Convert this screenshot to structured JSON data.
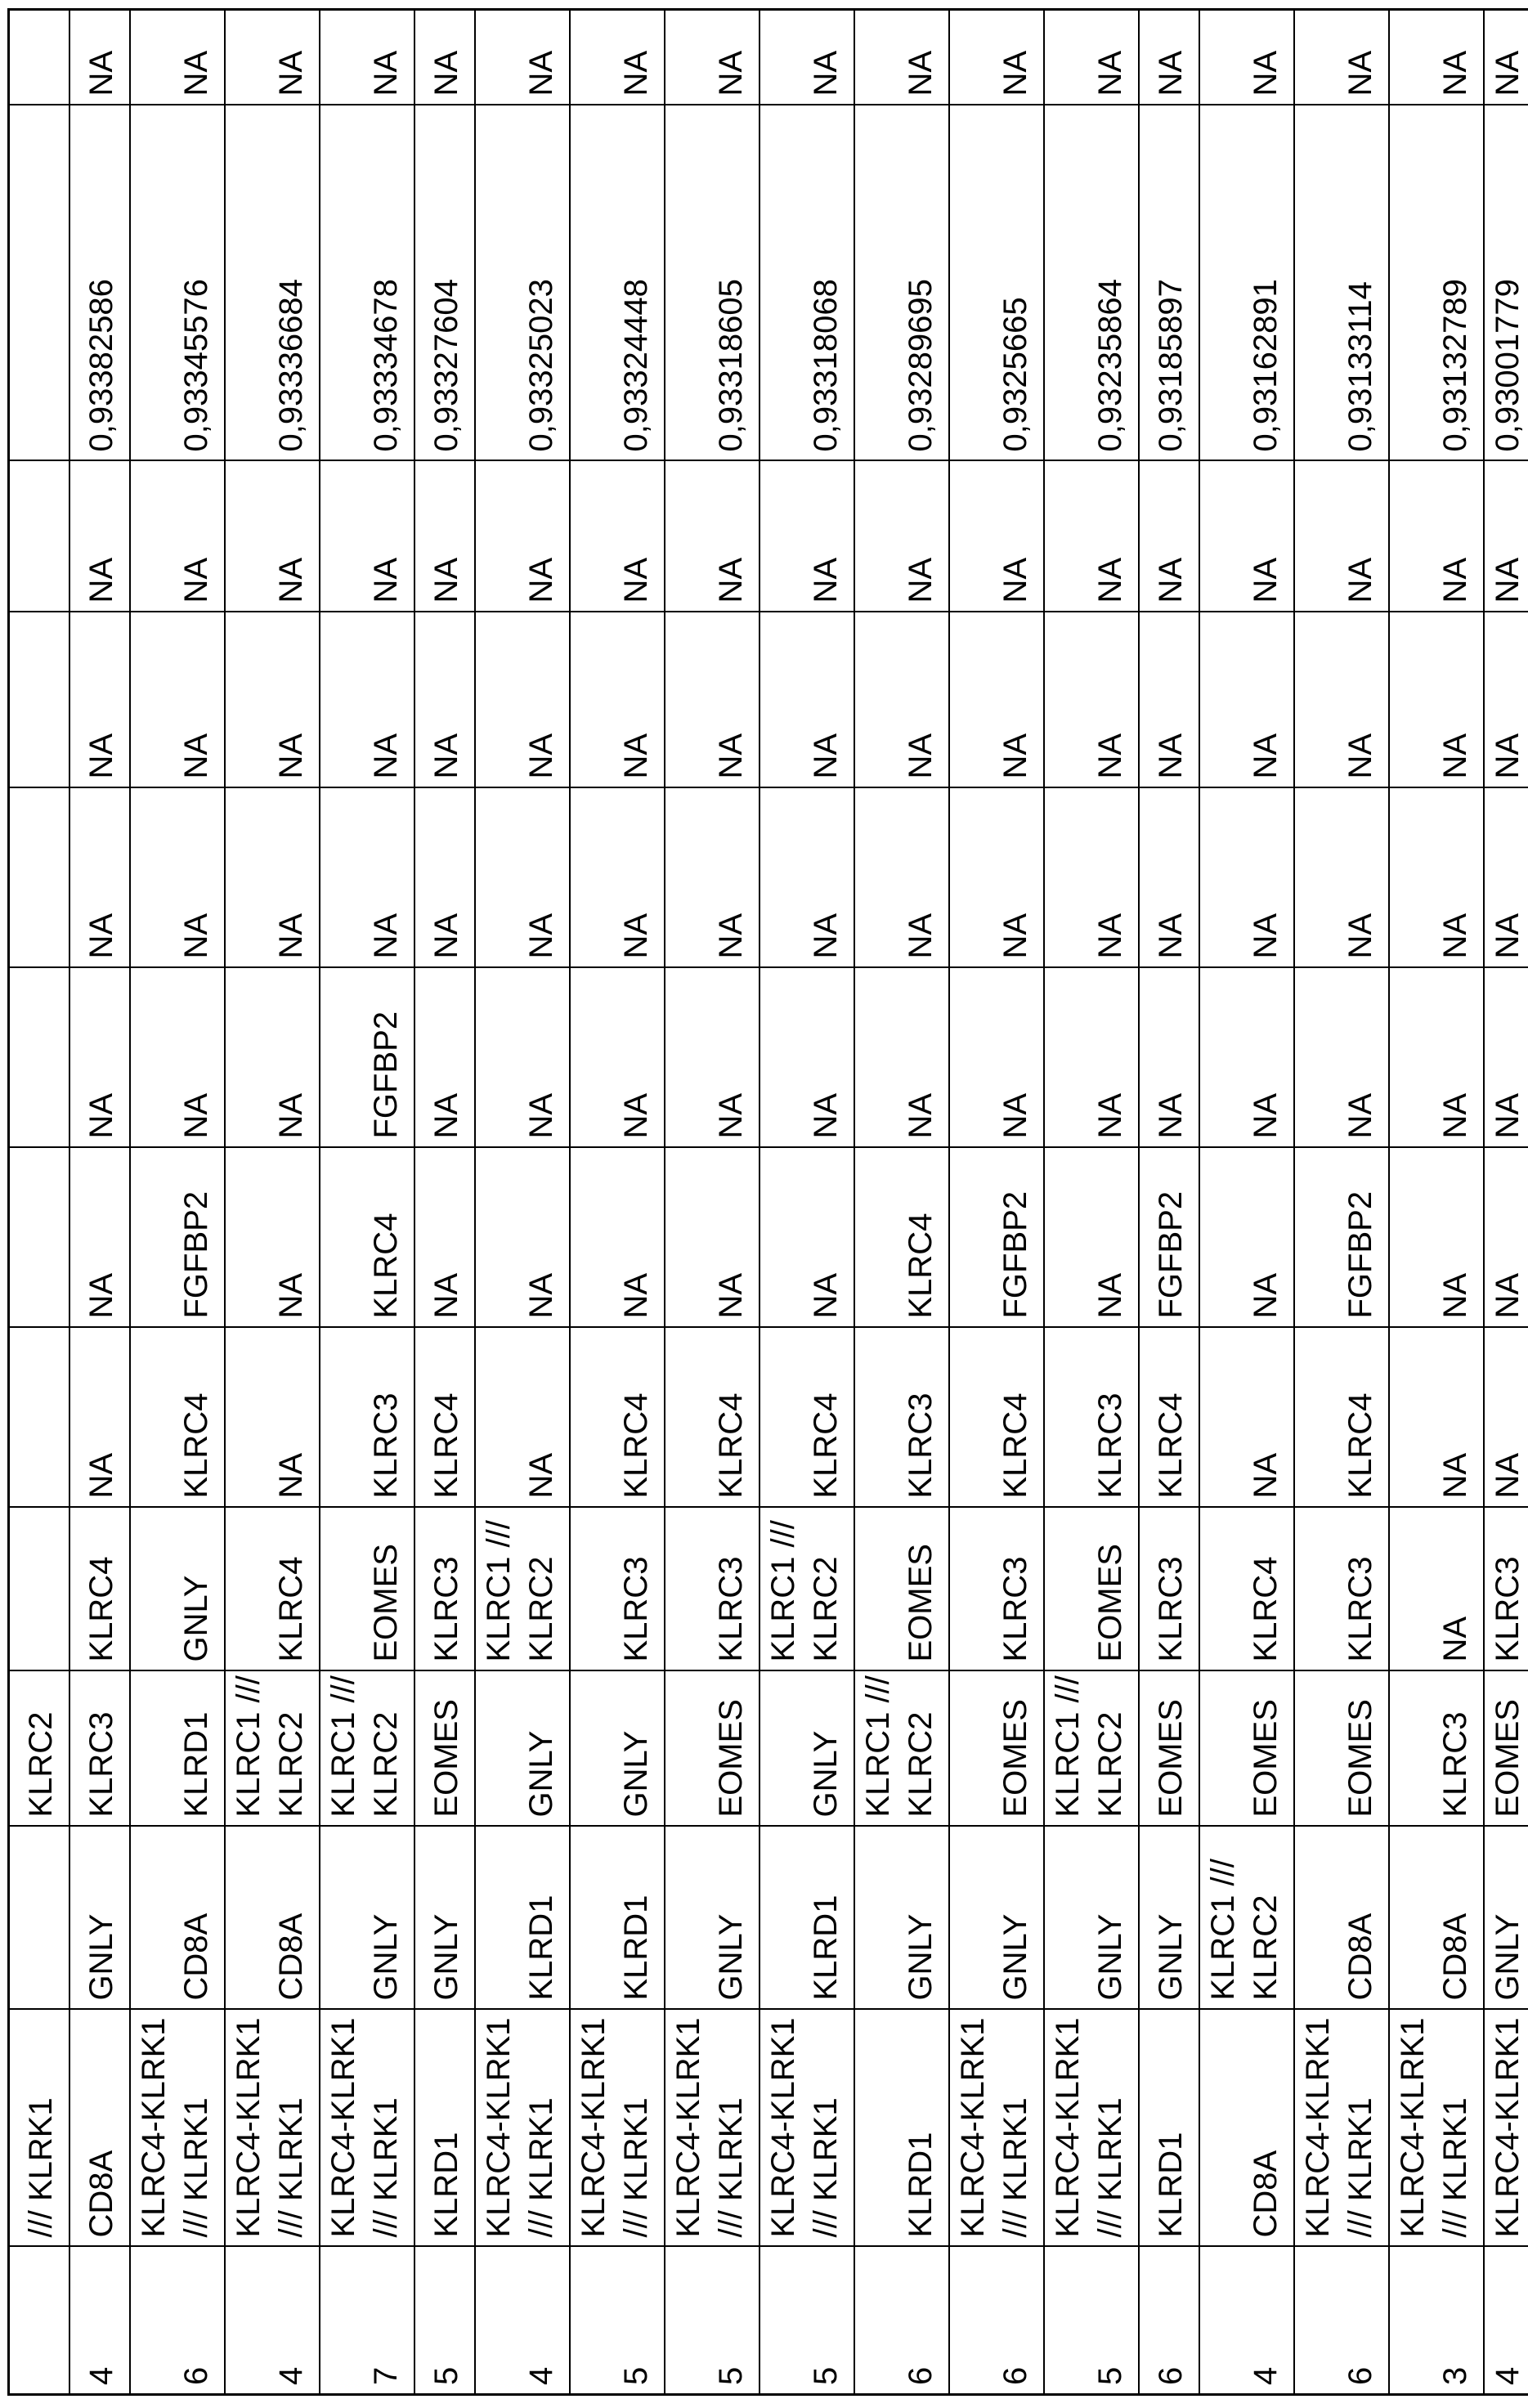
{
  "page": {
    "kind": "rotated table page",
    "background_color": "#ffffff",
    "grid_color": "#000000",
    "text_color": "#000000"
  },
  "table": {
    "column_count": 13,
    "rows": [
      [
        "",
        "/// KLRK1",
        "",
        "KLRC2",
        "",
        "",
        "",
        "",
        "",
        "",
        "",
        "",
        ""
      ],
      [
        "4",
        "CD8A",
        "GNLY",
        "KLRC3",
        "KLRC4",
        "NA",
        "NA",
        "NA",
        "NA",
        "NA",
        "NA",
        "0,93382586",
        "NA"
      ],
      [
        "6",
        "KLRC4-KLRK1 /// KLRK1",
        "CD8A",
        "KLRD1",
        "GNLY",
        "KLRC4",
        "FGFBP2",
        "NA",
        "NA",
        "NA",
        "NA",
        "0,93345576",
        "NA"
      ],
      [
        "4",
        "KLRC4-KLRK1 /// KLRK1",
        "CD8A",
        "KLRC1 /// KLRC2",
        "KLRC4",
        "NA",
        "NA",
        "NA",
        "NA",
        "NA",
        "NA",
        "0,93336684",
        "NA"
      ],
      [
        "7",
        "KLRC4-KLRK1 /// KLRK1",
        "GNLY",
        "KLRC1 /// KLRC2",
        "EOMES",
        "KLRC3",
        "KLRC4",
        "FGFBP2",
        "NA",
        "NA",
        "NA",
        "0,93334678",
        "NA"
      ],
      [
        "5",
        "KLRD1",
        "GNLY",
        "EOMES",
        "KLRC3",
        "KLRC4",
        "NA",
        "NA",
        "NA",
        "NA",
        "NA",
        "0,93327604",
        "NA"
      ],
      [
        "4",
        "KLRC4-KLRK1 /// KLRK1",
        "KLRD1",
        "GNLY",
        "KLRC1 /// KLRC2",
        "NA",
        "NA",
        "NA",
        "NA",
        "NA",
        "NA",
        "0,93325023",
        "NA"
      ],
      [
        "5",
        "KLRC4-KLRK1 /// KLRK1",
        "KLRD1",
        "GNLY",
        "KLRC3",
        "KLRC4",
        "NA",
        "NA",
        "NA",
        "NA",
        "NA",
        "0,93324448",
        "NA"
      ],
      [
        "5",
        "KLRC4-KLRK1 /// KLRK1",
        "GNLY",
        "EOMES",
        "KLRC3",
        "KLRC4",
        "NA",
        "NA",
        "NA",
        "NA",
        "NA",
        "0,93318605",
        "NA"
      ],
      [
        "5",
        "KLRC4-KLRK1 /// KLRK1",
        "KLRD1",
        "GNLY",
        "KLRC1 /// KLRC2",
        "KLRC4",
        "NA",
        "NA",
        "NA",
        "NA",
        "NA",
        "0,93318068",
        "NA"
      ],
      [
        "6",
        "KLRD1",
        "GNLY",
        "KLRC1 /// KLRC2",
        "EOMES",
        "KLRC3",
        "KLRC4",
        "NA",
        "NA",
        "NA",
        "NA",
        "0,93289695",
        "NA"
      ],
      [
        "6",
        "KLRC4-KLRK1 /// KLRK1",
        "GNLY",
        "EOMES",
        "KLRC3",
        "KLRC4",
        "FGFBP2",
        "NA",
        "NA",
        "NA",
        "NA",
        "0,9325665",
        "NA"
      ],
      [
        "5",
        "KLRC4-KLRK1 /// KLRK1",
        "GNLY",
        "KLRC1 /// KLRC2",
        "EOMES",
        "KLRC3",
        "NA",
        "NA",
        "NA",
        "NA",
        "NA",
        "0,93235864",
        "NA"
      ],
      [
        "6",
        "KLRD1",
        "GNLY",
        "EOMES",
        "KLRC3",
        "KLRC4",
        "FGFBP2",
        "NA",
        "NA",
        "NA",
        "NA",
        "0,93185897",
        "NA"
      ],
      [
        "4",
        "CD8A",
        "KLRC1 /// KLRC2",
        "EOMES",
        "KLRC4",
        "NA",
        "NA",
        "NA",
        "NA",
        "NA",
        "NA",
        "0,93162891",
        "NA"
      ],
      [
        "6",
        "KLRC4-KLRK1 /// KLRK1",
        "CD8A",
        "EOMES",
        "KLRC3",
        "KLRC4",
        "FGFBP2",
        "NA",
        "NA",
        "NA",
        "NA",
        "0,93133114",
        "NA"
      ],
      [
        "3",
        "KLRC4-KLRK1 /// KLRK1",
        "CD8A",
        "KLRC3",
        "NA",
        "NA",
        "NA",
        "NA",
        "NA",
        "NA",
        "NA",
        "0,93132789",
        "NA"
      ],
      [
        "4",
        "KLRC4-KLRK1",
        "GNLY",
        "EOMES",
        "KLRC3",
        "NA",
        "NA",
        "NA",
        "NA",
        "NA",
        "NA",
        "0,93001779",
        "NA"
      ]
    ]
  }
}
